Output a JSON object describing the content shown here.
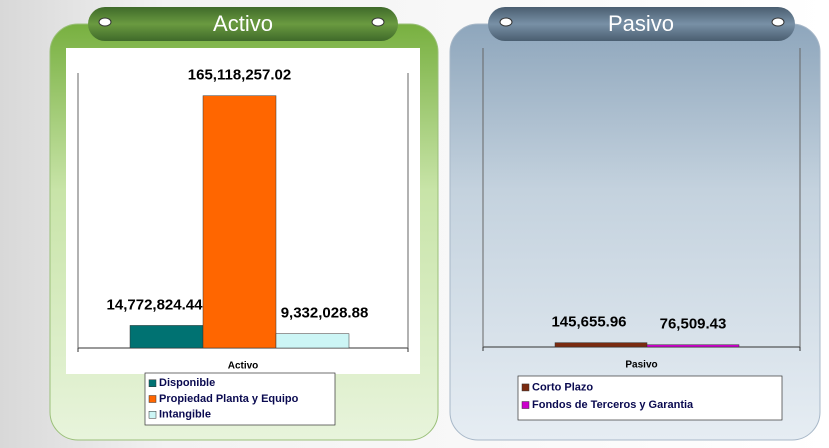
{
  "chart_data": [
    {
      "type": "bar",
      "title": "Activo",
      "categories": [
        "Activo"
      ],
      "series": [
        {
          "name": "Disponible",
          "color": "#007272",
          "values": [
            14772824.44
          ],
          "value_labels": [
            "14,772,824.44"
          ]
        },
        {
          "name": "Propiedad Planta y Equipo",
          "color": "#ff6600",
          "values": [
            165118257.02
          ],
          "value_labels": [
            "165,118,257.02"
          ]
        },
        {
          "name": "Intangible",
          "color": "#ccf5f5",
          "values": [
            9332028.88
          ],
          "value_labels": [
            "9,332,028.88"
          ]
        }
      ],
      "ylim": [
        0,
        180000000
      ]
    },
    {
      "type": "bar",
      "title": "Pasivo",
      "categories": [
        "Pasivo"
      ],
      "series": [
        {
          "name": "Corto Plazo",
          "color": "#7a2a10",
          "values": [
            145655.96
          ],
          "value_labels": [
            "145,655.96"
          ]
        },
        {
          "name": "Fondos de Terceros y Garantia",
          "color": "#cc00cc",
          "values": [
            76509.43
          ],
          "value_labels": [
            "76,509.43"
          ]
        }
      ],
      "ylim": [
        0,
        10000000
      ]
    }
  ]
}
